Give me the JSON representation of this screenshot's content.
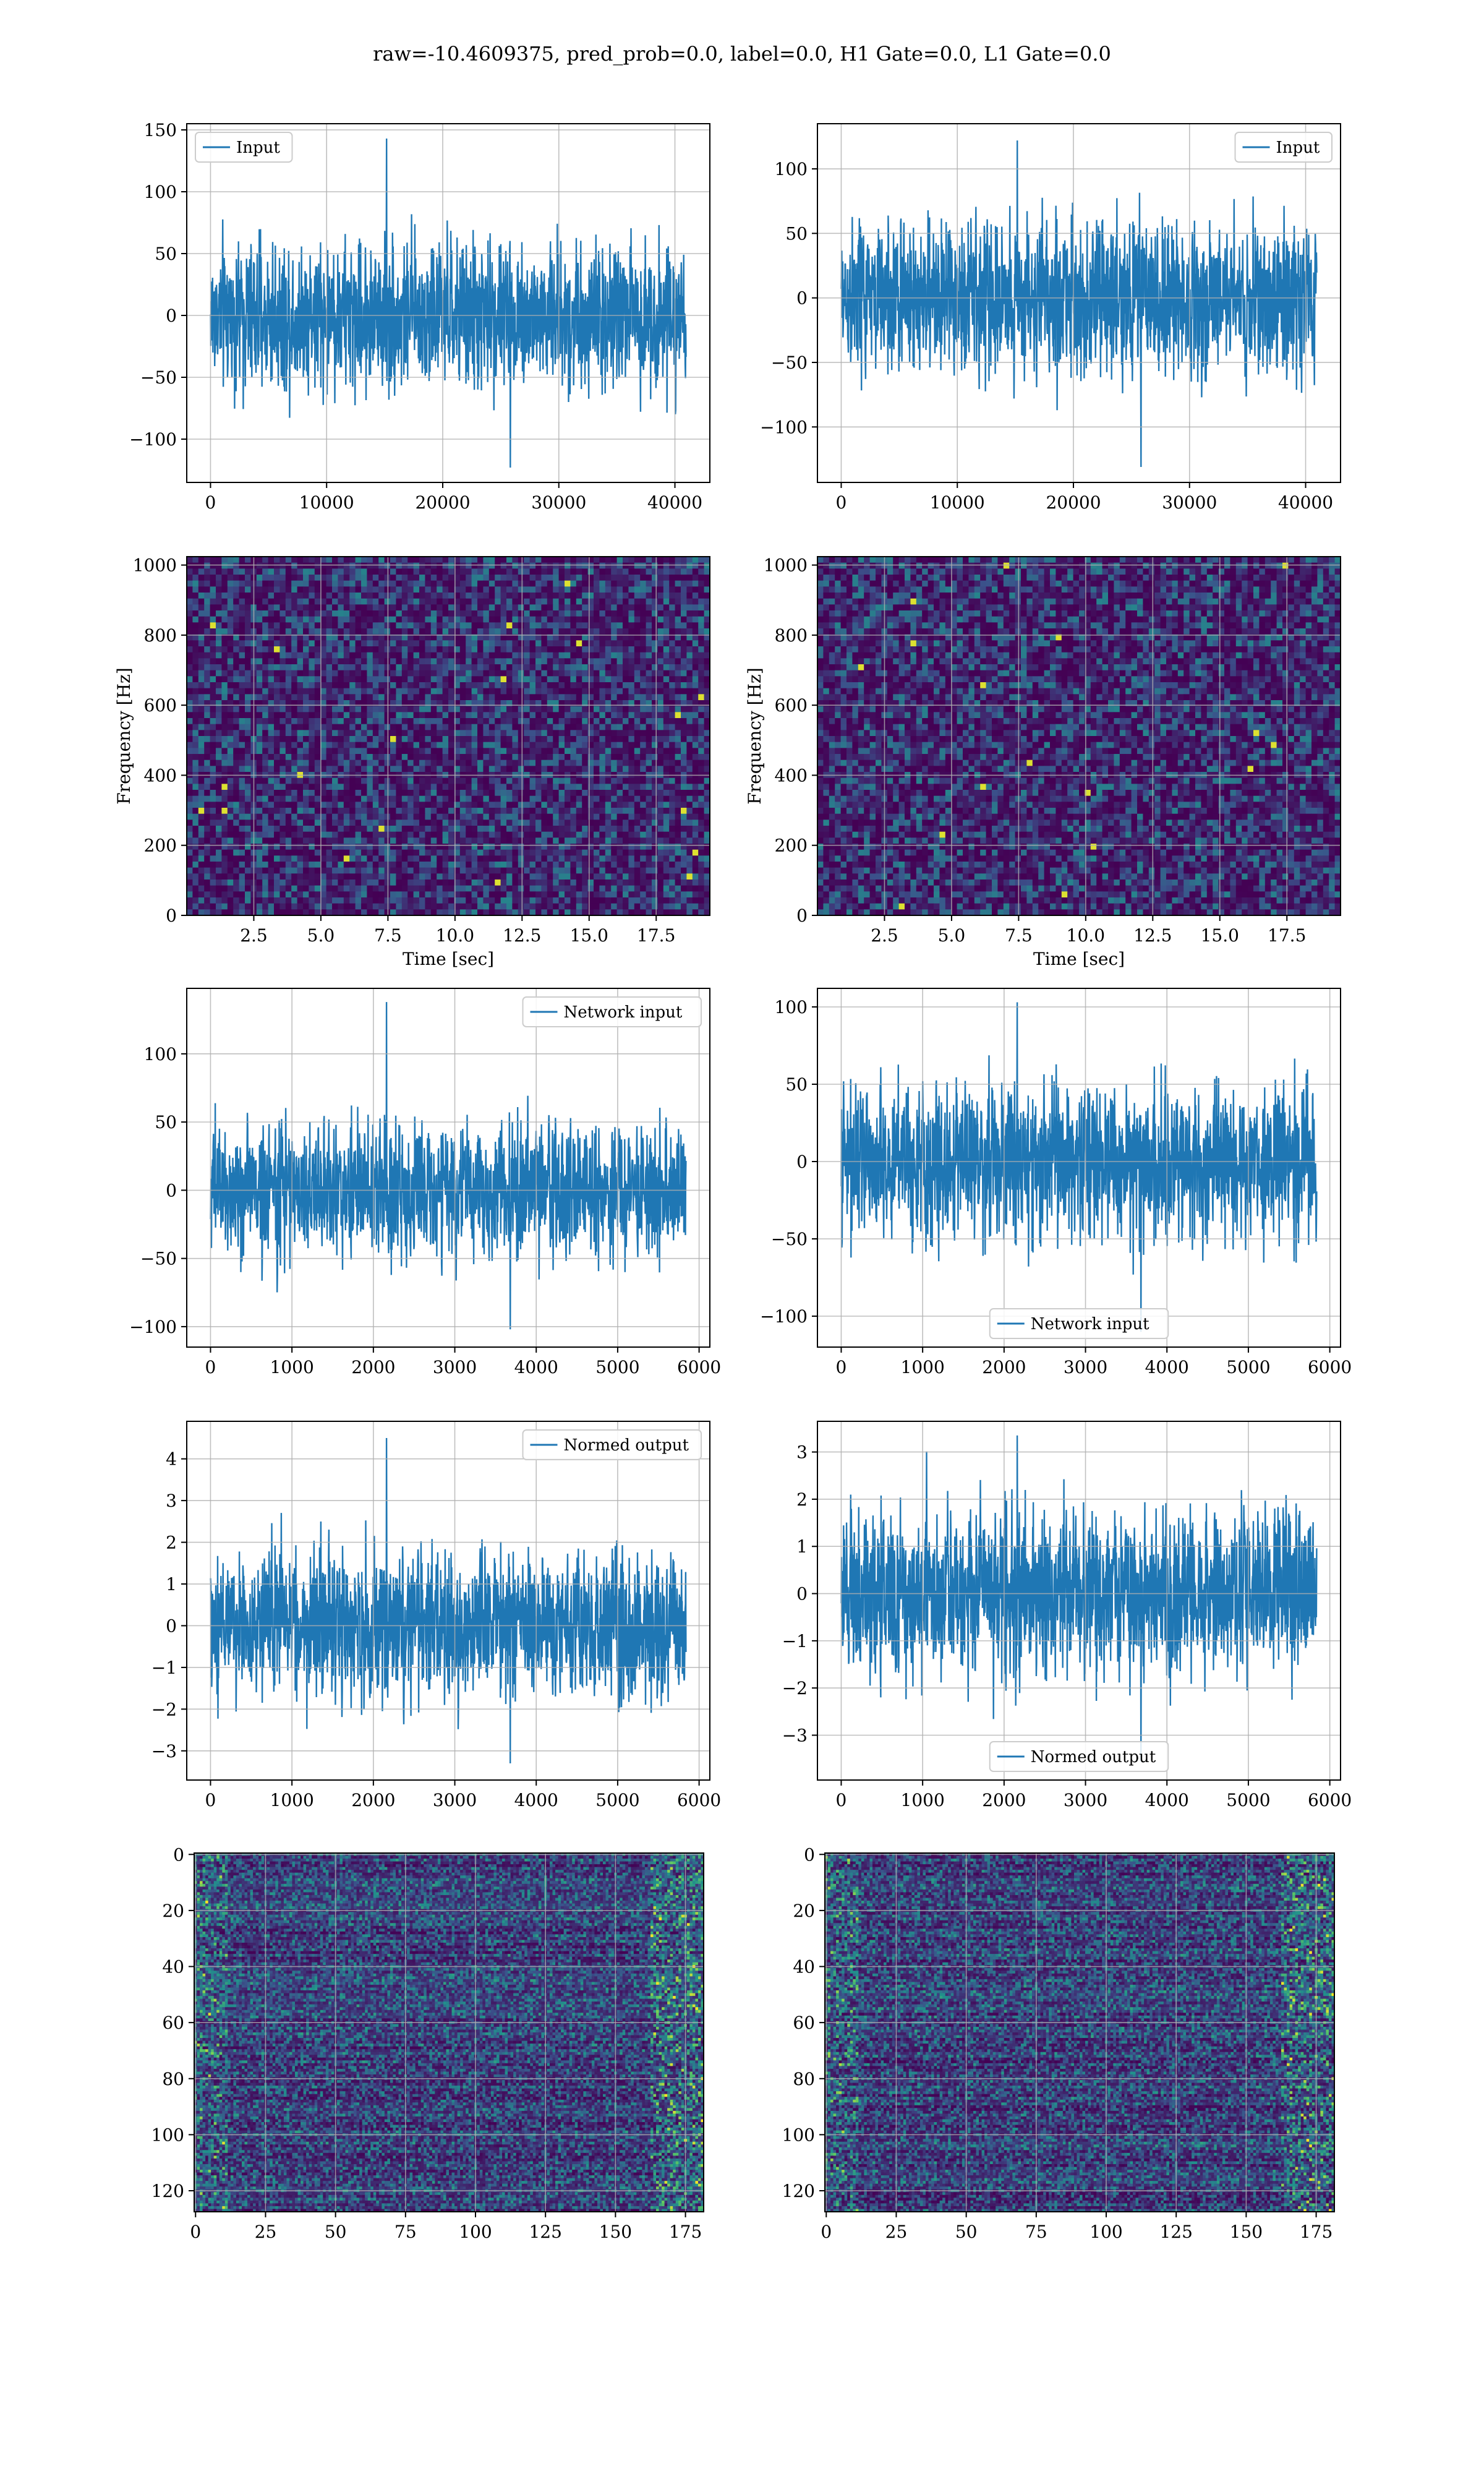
{
  "figure": {
    "title": "raw=-10.4609375, pred_prob=0.0, label=0.0, H1 Gate=0.0, L1 Gate=0.0"
  },
  "colors": {
    "line": "#1f77b4",
    "grid": "#b0b0b0",
    "viridis_low": "#440154",
    "viridis_mid": "#21918c",
    "viridis_high": "#fde725"
  },
  "chart_data": [
    {
      "id": "input-h1",
      "type": "line",
      "panel": "row1-left",
      "title": "",
      "xlabel": "",
      "ylabel": "",
      "legend": {
        "label": "Input",
        "placement": "upper-left"
      },
      "series": [
        {
          "name": "Input",
          "n_points": 40960,
          "noise_std": 30,
          "y_max": 143,
          "y_min": -123
        }
      ],
      "xlim": [
        -2048,
        43008
      ],
      "ylim": [
        -135,
        155
      ],
      "xticks": [
        0,
        10000,
        20000,
        30000,
        40000
      ],
      "xticklabels": [
        "0",
        "10000",
        "20000",
        "30000",
        "40000"
      ],
      "yticks": [
        -100,
        -50,
        0,
        50,
        100,
        150
      ],
      "yticklabels": [
        "−100",
        "−50",
        "0",
        "50",
        "100",
        "150"
      ],
      "grid": true
    },
    {
      "id": "input-l1",
      "type": "line",
      "panel": "row1-right",
      "title": "",
      "xlabel": "",
      "ylabel": "",
      "legend": {
        "label": "Input",
        "placement": "upper-right"
      },
      "series": [
        {
          "name": "Input",
          "n_points": 40960,
          "noise_std": 30,
          "y_max": 122,
          "y_min": -131
        }
      ],
      "xlim": [
        -2048,
        43008
      ],
      "ylim": [
        -143,
        135
      ],
      "xticks": [
        0,
        10000,
        20000,
        30000,
        40000
      ],
      "xticklabels": [
        "0",
        "10000",
        "20000",
        "30000",
        "40000"
      ],
      "yticks": [
        -100,
        -50,
        0,
        50,
        100
      ],
      "yticklabels": [
        "−100",
        "−50",
        "0",
        "50",
        "100"
      ],
      "grid": true
    },
    {
      "id": "spectrogram-h1",
      "type": "heatmap",
      "panel": "row2-left",
      "title": "",
      "xlabel": "Time [sec]",
      "ylabel": "Frequency [Hz]",
      "xlim": [
        0,
        19.5
      ],
      "ylim": [
        0,
        1024
      ],
      "xticks": [
        2.5,
        5.0,
        7.5,
        10.0,
        12.5,
        15.0,
        17.5
      ],
      "xticklabels": [
        "2.5",
        "5.0",
        "7.5",
        "10.0",
        "12.5",
        "15.0",
        "17.5"
      ],
      "yticks": [
        0,
        200,
        400,
        600,
        800,
        1000
      ],
      "yticklabels": [
        "0",
        "200",
        "400",
        "600",
        "800",
        "1000"
      ],
      "colormap": "viridis",
      "grid": true
    },
    {
      "id": "spectrogram-l1",
      "type": "heatmap",
      "panel": "row2-right",
      "title": "",
      "xlabel": "Time [sec]",
      "ylabel": "Frequency [Hz]",
      "xlim": [
        0,
        19.5
      ],
      "ylim": [
        0,
        1024
      ],
      "xticks": [
        2.5,
        5.0,
        7.5,
        10.0,
        12.5,
        15.0,
        17.5
      ],
      "xticklabels": [
        "2.5",
        "5.0",
        "7.5",
        "10.0",
        "12.5",
        "15.0",
        "17.5"
      ],
      "yticks": [
        0,
        200,
        400,
        600,
        800,
        1000
      ],
      "yticklabels": [
        "0",
        "200",
        "400",
        "600",
        "800",
        "1000"
      ],
      "colormap": "viridis",
      "grid": true
    },
    {
      "id": "network-input-h1",
      "type": "line",
      "panel": "row3-left",
      "title": "",
      "xlabel": "",
      "ylabel": "",
      "legend": {
        "label": "Network input",
        "placement": "upper-right"
      },
      "series": [
        {
          "name": "Network input",
          "n_points": 5840,
          "noise_std": 25,
          "y_max": 138,
          "y_min": -102
        }
      ],
      "xlim": [
        -292,
        6132
      ],
      "ylim": [
        -115,
        148
      ],
      "xticks": [
        0,
        1000,
        2000,
        3000,
        4000,
        5000,
        6000
      ],
      "xticklabels": [
        "0",
        "1000",
        "2000",
        "3000",
        "4000",
        "5000",
        "6000"
      ],
      "yticks": [
        -100,
        -50,
        0,
        50,
        100
      ],
      "yticklabels": [
        "−100",
        "−50",
        "0",
        "50",
        "100"
      ],
      "grid": true
    },
    {
      "id": "network-input-l1",
      "type": "line",
      "panel": "row3-right",
      "title": "",
      "xlabel": "",
      "ylabel": "",
      "legend": {
        "label": "Network input",
        "placement": "lower-center"
      },
      "series": [
        {
          "name": "Network input",
          "n_points": 5840,
          "noise_std": 25,
          "y_max": 103,
          "y_min": -110
        }
      ],
      "xlim": [
        -292,
        6132
      ],
      "ylim": [
        -120,
        112
      ],
      "xticks": [
        0,
        1000,
        2000,
        3000,
        4000,
        5000,
        6000
      ],
      "xticklabels": [
        "0",
        "1000",
        "2000",
        "3000",
        "4000",
        "5000",
        "6000"
      ],
      "yticks": [
        -100,
        -50,
        0,
        50,
        100
      ],
      "yticklabels": [
        "−100",
        "−50",
        "0",
        "50",
        "100"
      ],
      "grid": true
    },
    {
      "id": "normed-output-h1",
      "type": "line",
      "panel": "row4-left",
      "title": "",
      "xlabel": "",
      "ylabel": "",
      "legend": {
        "label": "Normed output",
        "placement": "upper-right"
      },
      "series": [
        {
          "name": "Normed output",
          "n_points": 5840,
          "noise_std": 0.9,
          "y_max": 4.5,
          "y_min": -3.3
        }
      ],
      "xlim": [
        -292,
        6132
      ],
      "ylim": [
        -3.7,
        4.9
      ],
      "xticks": [
        0,
        1000,
        2000,
        3000,
        4000,
        5000,
        6000
      ],
      "xticklabels": [
        "0",
        "1000",
        "2000",
        "3000",
        "4000",
        "5000",
        "6000"
      ],
      "yticks": [
        -3,
        -2,
        -1,
        0,
        1,
        2,
        3,
        4
      ],
      "yticklabels": [
        "−3",
        "−2",
        "−1",
        "0",
        "1",
        "2",
        "3",
        "4"
      ],
      "grid": true
    },
    {
      "id": "normed-output-l1",
      "type": "line",
      "panel": "row4-right",
      "title": "",
      "xlabel": "",
      "ylabel": "",
      "legend": {
        "label": "Normed output",
        "placement": "lower-center"
      },
      "series": [
        {
          "name": "Normed output",
          "n_points": 5840,
          "noise_std": 0.9,
          "y_max": 3.35,
          "y_min": -3.55
        }
      ],
      "xlim": [
        -292,
        6132
      ],
      "ylim": [
        -3.95,
        3.65
      ],
      "xticks": [
        0,
        1000,
        2000,
        3000,
        4000,
        5000,
        6000
      ],
      "xticklabels": [
        "0",
        "1000",
        "2000",
        "3000",
        "4000",
        "5000",
        "6000"
      ],
      "yticks": [
        -3,
        -2,
        -1,
        0,
        1,
        2,
        3
      ],
      "yticklabels": [
        "−3",
        "−2",
        "−1",
        "0",
        "1",
        "2",
        "3"
      ],
      "grid": true
    },
    {
      "id": "feature-map-h1",
      "type": "heatmap",
      "panel": "row5-left",
      "title": "",
      "xlabel": "",
      "ylabel": "",
      "rows": 128,
      "cols": 182,
      "xlim": [
        -0.5,
        181.5
      ],
      "ylim": [
        127.5,
        -0.5
      ],
      "xticks": [
        0,
        25,
        50,
        75,
        100,
        125,
        150,
        175
      ],
      "xticklabels": [
        "0",
        "25",
        "50",
        "75",
        "100",
        "125",
        "150",
        "175"
      ],
      "yticks": [
        0,
        20,
        40,
        60,
        80,
        100,
        120
      ],
      "yticklabels": [
        "0",
        "20",
        "40",
        "60",
        "80",
        "100",
        "120"
      ],
      "colormap": "viridis",
      "grid": true
    },
    {
      "id": "feature-map-l1",
      "type": "heatmap",
      "panel": "row5-right",
      "title": "",
      "xlabel": "",
      "ylabel": "",
      "rows": 128,
      "cols": 182,
      "xlim": [
        -0.5,
        181.5
      ],
      "ylim": [
        127.5,
        -0.5
      ],
      "xticks": [
        0,
        25,
        50,
        75,
        100,
        125,
        150,
        175
      ],
      "xticklabels": [
        "0",
        "25",
        "50",
        "75",
        "100",
        "125",
        "150",
        "175"
      ],
      "yticks": [
        0,
        20,
        40,
        60,
        80,
        100,
        120
      ],
      "yticklabels": [
        "0",
        "20",
        "40",
        "60",
        "80",
        "100",
        "120"
      ],
      "colormap": "viridis",
      "grid": true
    }
  ]
}
